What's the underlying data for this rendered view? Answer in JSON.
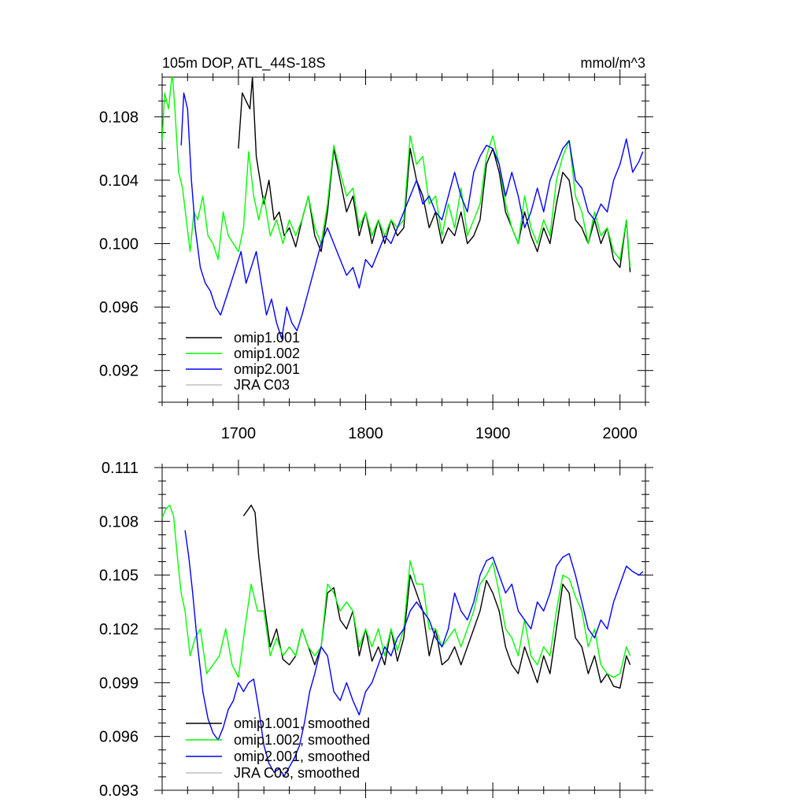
{
  "chart_data": [
    {
      "type": "line",
      "title": "105m DOP, ATL_44S-18S",
      "units": "mmol/m^3",
      "xlim": [
        1640,
        2020
      ],
      "ylim": [
        0.09,
        0.1105
      ],
      "x_ticks": [
        1700,
        1800,
        1900,
        2000
      ],
      "x_tick_labels": [
        "1700",
        "1800",
        "1900",
        "2000"
      ],
      "y_ticks": [
        0.092,
        0.096,
        0.1,
        0.104,
        0.108
      ],
      "y_tick_labels": [
        "0.092",
        "0.096",
        "0.100",
        "0.104",
        "0.108"
      ],
      "legend_position": "bottom-left",
      "series": [
        {
          "name": "omip1.001",
          "color": "#000000",
          "x": [
            1700,
            1703,
            1706,
            1709,
            1711,
            1714,
            1717,
            1720,
            1724,
            1728,
            1732,
            1736,
            1740,
            1745,
            1750,
            1755,
            1760,
            1765,
            1770,
            1775,
            1780,
            1785,
            1790,
            1795,
            1800,
            1805,
            1810,
            1815,
            1820,
            1825,
            1830,
            1835,
            1840,
            1845,
            1850,
            1855,
            1860,
            1865,
            1870,
            1875,
            1880,
            1885,
            1890,
            1895,
            1900,
            1905,
            1910,
            1915,
            1920,
            1925,
            1930,
            1935,
            1940,
            1945,
            1950,
            1955,
            1960,
            1965,
            1970,
            1975,
            1980,
            1985,
            1990,
            1995,
            2000,
            2005,
            2008
          ],
          "y": [
            0.106,
            0.1095,
            0.109,
            0.1085,
            0.1105,
            0.1055,
            0.104,
            0.1025,
            0.104,
            0.1015,
            0.102,
            0.1005,
            0.101,
            0.0998,
            0.1015,
            0.103,
            0.1005,
            0.0995,
            0.102,
            0.106,
            0.104,
            0.102,
            0.103,
            0.1005,
            0.102,
            0.1,
            0.1015,
            0.1,
            0.1015,
            0.1005,
            0.101,
            0.106,
            0.104,
            0.103,
            0.101,
            0.102,
            0.1,
            0.101,
            0.1005,
            0.102,
            0.1,
            0.1005,
            0.1015,
            0.105,
            0.106,
            0.1045,
            0.102,
            0.101,
            0.1,
            0.102,
            0.1005,
            0.0995,
            0.101,
            0.1,
            0.1025,
            0.1045,
            0.104,
            0.1015,
            0.101,
            0.1,
            0.1015,
            0.1,
            0.101,
            0.099,
            0.0985,
            0.1015,
            0.0982
          ]
        },
        {
          "name": "omip1.002",
          "color": "#00ff00",
          "x": [
            1640,
            1642,
            1645,
            1648,
            1650,
            1653,
            1656,
            1659,
            1662,
            1665,
            1668,
            1672,
            1676,
            1680,
            1684,
            1688,
            1692,
            1696,
            1700,
            1704,
            1708,
            1712,
            1716,
            1720,
            1725,
            1730,
            1735,
            1740,
            1745,
            1750,
            1755,
            1760,
            1765,
            1770,
            1775,
            1780,
            1785,
            1790,
            1795,
            1800,
            1805,
            1810,
            1815,
            1820,
            1825,
            1830,
            1835,
            1840,
            1845,
            1850,
            1855,
            1860,
            1865,
            1870,
            1875,
            1880,
            1885,
            1890,
            1895,
            1900,
            1905,
            1910,
            1915,
            1920,
            1925,
            1930,
            1935,
            1940,
            1945,
            1950,
            1955,
            1960,
            1965,
            1970,
            1975,
            1980,
            1985,
            1990,
            1995,
            2000,
            2005,
            2008
          ],
          "y": [
            0.1065,
            0.1095,
            0.1085,
            0.1108,
            0.1085,
            0.1045,
            0.1035,
            0.1015,
            0.0995,
            0.102,
            0.1015,
            0.103,
            0.1005,
            0.1,
            0.099,
            0.102,
            0.1005,
            0.1,
            0.0995,
            0.101,
            0.1058,
            0.103,
            0.1015,
            0.103,
            0.1005,
            0.1015,
            0.1,
            0.1015,
            0.1005,
            0.1015,
            0.103,
            0.101,
            0.1,
            0.1025,
            0.1062,
            0.1045,
            0.103,
            0.1035,
            0.101,
            0.102,
            0.1005,
            0.1015,
            0.1005,
            0.1015,
            0.101,
            0.1015,
            0.1068,
            0.105,
            0.1055,
            0.1025,
            0.103,
            0.1005,
            0.1025,
            0.101,
            0.1035,
            0.1005,
            0.1015,
            0.1025,
            0.1055,
            0.1068,
            0.105,
            0.1025,
            0.101,
            0.1,
            0.103,
            0.101,
            0.1,
            0.1015,
            0.1005,
            0.104,
            0.1055,
            0.1065,
            0.103,
            0.102,
            0.1,
            0.102,
            0.1005,
            0.101,
            0.0995,
            0.099,
            0.1015,
            0.0985
          ]
        },
        {
          "name": "omip2.001",
          "color": "#0000ff",
          "x": [
            1655,
            1657,
            1660,
            1663,
            1666,
            1670,
            1674,
            1678,
            1682,
            1686,
            1690,
            1694,
            1698,
            1702,
            1706,
            1710,
            1714,
            1718,
            1722,
            1726,
            1730,
            1734,
            1738,
            1742,
            1746,
            1750,
            1755,
            1760,
            1765,
            1770,
            1775,
            1780,
            1785,
            1790,
            1795,
            1800,
            1805,
            1810,
            1815,
            1820,
            1825,
            1830,
            1835,
            1840,
            1845,
            1850,
            1855,
            1860,
            1865,
            1870,
            1875,
            1880,
            1885,
            1890,
            1895,
            1900,
            1905,
            1910,
            1915,
            1920,
            1925,
            1930,
            1935,
            1940,
            1945,
            1950,
            1955,
            1960,
            1965,
            1970,
            1975,
            1980,
            1985,
            1990,
            1995,
            2000,
            2005,
            2010,
            2015,
            2018
          ],
          "y": [
            0.1062,
            0.1095,
            0.1085,
            0.104,
            0.101,
            0.0985,
            0.0975,
            0.097,
            0.096,
            0.0955,
            0.0965,
            0.0975,
            0.0985,
            0.0995,
            0.0975,
            0.0985,
            0.0995,
            0.0975,
            0.0955,
            0.0965,
            0.095,
            0.094,
            0.096,
            0.095,
            0.0945,
            0.0955,
            0.097,
            0.0985,
            0.1,
            0.101,
            0.1,
            0.099,
            0.098,
            0.0985,
            0.0972,
            0.099,
            0.0985,
            0.0995,
            0.1005,
            0.1,
            0.101,
            0.102,
            0.103,
            0.104,
            0.1025,
            0.103,
            0.102,
            0.1015,
            0.103,
            0.1045,
            0.103,
            0.102,
            0.1045,
            0.1055,
            0.1062,
            0.106,
            0.105,
            0.103,
            0.1045,
            0.103,
            0.101,
            0.102,
            0.1035,
            0.102,
            0.104,
            0.105,
            0.106,
            0.1065,
            0.104,
            0.1035,
            0.102,
            0.1015,
            0.1025,
            0.102,
            0.104,
            0.105,
            0.1066,
            0.1045,
            0.1052,
            0.1058
          ]
        },
        {
          "name": "JRA C03",
          "color": "#c0c0c0",
          "x": [],
          "y": []
        }
      ]
    },
    {
      "type": "line",
      "title": "",
      "xlim": [
        1640,
        2020
      ],
      "ylim": [
        0.093,
        0.111
      ],
      "y_ticks": [
        0.093,
        0.096,
        0.099,
        0.102,
        0.105,
        0.108,
        0.111
      ],
      "y_tick_labels": [
        "0.093",
        "0.096",
        "0.099",
        "0.102",
        "0.105",
        "0.108",
        "0.111"
      ],
      "x_ticks": [
        1700,
        1800,
        1900,
        2000
      ],
      "legend_position": "bottom-left",
      "series": [
        {
          "name": "omip1.001, smoothed",
          "color": "#000000",
          "x": [
            1704,
            1707,
            1710,
            1713,
            1716,
            1720,
            1725,
            1730,
            1735,
            1740,
            1745,
            1750,
            1755,
            1760,
            1765,
            1770,
            1775,
            1780,
            1785,
            1790,
            1795,
            1800,
            1805,
            1810,
            1815,
            1820,
            1825,
            1830,
            1835,
            1840,
            1845,
            1850,
            1855,
            1860,
            1865,
            1870,
            1875,
            1880,
            1885,
            1890,
            1895,
            1900,
            1905,
            1910,
            1915,
            1920,
            1925,
            1930,
            1935,
            1940,
            1945,
            1950,
            1955,
            1960,
            1965,
            1970,
            1975,
            1980,
            1985,
            1990,
            1995,
            2000,
            2005,
            2008
          ],
          "y": [
            0.1083,
            0.1086,
            0.1089,
            0.1085,
            0.106,
            0.1035,
            0.101,
            0.102,
            0.1003,
            0.1,
            0.1005,
            0.102,
            0.101,
            0.1,
            0.101,
            0.104,
            0.1043,
            0.1025,
            0.102,
            0.103,
            0.1005,
            0.102,
            0.1002,
            0.101,
            0.1,
            0.102,
            0.1002,
            0.1015,
            0.105,
            0.104,
            0.103,
            0.1005,
            0.102,
            0.1,
            0.1003,
            0.101,
            0.1,
            0.101,
            0.102,
            0.103,
            0.1047,
            0.104,
            0.103,
            0.101,
            0.1,
            0.0995,
            0.101,
            0.1,
            0.099,
            0.1005,
            0.0995,
            0.102,
            0.1045,
            0.104,
            0.1015,
            0.101,
            0.0995,
            0.1005,
            0.099,
            0.0995,
            0.0988,
            0.0987,
            0.1005,
            0.1
          ]
        },
        {
          "name": "omip1.002, smoothed",
          "color": "#00ff00",
          "x": [
            1640,
            1643,
            1646,
            1649,
            1652,
            1655,
            1658,
            1662,
            1666,
            1670,
            1675,
            1680,
            1685,
            1690,
            1695,
            1700,
            1705,
            1710,
            1715,
            1720,
            1725,
            1730,
            1735,
            1740,
            1745,
            1750,
            1755,
            1760,
            1765,
            1770,
            1775,
            1780,
            1785,
            1790,
            1795,
            1800,
            1805,
            1810,
            1815,
            1820,
            1825,
            1830,
            1835,
            1840,
            1845,
            1850,
            1855,
            1860,
            1865,
            1870,
            1875,
            1880,
            1885,
            1890,
            1895,
            1900,
            1905,
            1910,
            1915,
            1920,
            1925,
            1930,
            1935,
            1940,
            1945,
            1950,
            1955,
            1960,
            1965,
            1970,
            1975,
            1980,
            1985,
            1990,
            1995,
            2000,
            2005,
            2008
          ],
          "y": [
            0.1082,
            0.1087,
            0.1089,
            0.1083,
            0.106,
            0.104,
            0.103,
            0.1005,
            0.1015,
            0.102,
            0.0995,
            0.1,
            0.1005,
            0.102,
            0.1,
            0.0993,
            0.102,
            0.1045,
            0.103,
            0.103,
            0.1005,
            0.1015,
            0.1005,
            0.101,
            0.1005,
            0.102,
            0.101,
            0.1005,
            0.101,
            0.1045,
            0.104,
            0.103,
            0.1035,
            0.103,
            0.101,
            0.102,
            0.101,
            0.102,
            0.1005,
            0.102,
            0.1008,
            0.102,
            0.1058,
            0.1045,
            0.1045,
            0.102,
            0.102,
            0.101,
            0.1015,
            0.102,
            0.101,
            0.102,
            0.103,
            0.1045,
            0.105,
            0.1057,
            0.104,
            0.102,
            0.1015,
            0.1005,
            0.1025,
            0.1005,
            0.1,
            0.101,
            0.1005,
            0.103,
            0.105,
            0.1048,
            0.1038,
            0.103,
            0.101,
            0.102,
            0.1,
            0.0995,
            0.0993,
            0.0995,
            0.101,
            0.1005
          ]
        },
        {
          "name": "omip2.001, smoothed",
          "color": "#0000ff",
          "x": [
            1658,
            1661,
            1664,
            1668,
            1672,
            1676,
            1680,
            1684,
            1688,
            1692,
            1696,
            1700,
            1704,
            1708,
            1712,
            1716,
            1720,
            1724,
            1728,
            1732,
            1736,
            1740,
            1744,
            1748,
            1752,
            1756,
            1760,
            1765,
            1770,
            1775,
            1780,
            1785,
            1790,
            1795,
            1800,
            1805,
            1810,
            1815,
            1820,
            1825,
            1830,
            1835,
            1840,
            1845,
            1850,
            1855,
            1860,
            1865,
            1870,
            1875,
            1880,
            1885,
            1890,
            1895,
            1900,
            1905,
            1910,
            1915,
            1920,
            1925,
            1930,
            1935,
            1940,
            1945,
            1950,
            1955,
            1960,
            1965,
            1970,
            1975,
            1980,
            1985,
            1990,
            1995,
            2000,
            2005,
            2010,
            2015,
            2018
          ],
          "y": [
            0.1075,
            0.106,
            0.104,
            0.101,
            0.0985,
            0.097,
            0.0962,
            0.0958,
            0.0965,
            0.0975,
            0.098,
            0.099,
            0.0985,
            0.099,
            0.0992,
            0.0975,
            0.0955,
            0.0945,
            0.094,
            0.0942,
            0.0938,
            0.0943,
            0.0948,
            0.0955,
            0.0968,
            0.0985,
            0.0995,
            0.101,
            0.1005,
            0.0985,
            0.098,
            0.099,
            0.098,
            0.0972,
            0.0985,
            0.099,
            0.1,
            0.101,
            0.1005,
            0.1015,
            0.102,
            0.103,
            0.1035,
            0.103,
            0.1025,
            0.1015,
            0.101,
            0.102,
            0.104,
            0.103,
            0.1025,
            0.1035,
            0.105,
            0.1058,
            0.106,
            0.105,
            0.104,
            0.1045,
            0.103,
            0.1025,
            0.102,
            0.1035,
            0.103,
            0.104,
            0.1055,
            0.106,
            0.1062,
            0.105,
            0.1035,
            0.102,
            0.1015,
            0.1025,
            0.102,
            0.1035,
            0.1045,
            0.1055,
            0.1052,
            0.105,
            0.1052
          ]
        },
        {
          "name": "JRA C03, smoothed",
          "color": "#c0c0c0",
          "x": [],
          "y": []
        }
      ]
    }
  ]
}
